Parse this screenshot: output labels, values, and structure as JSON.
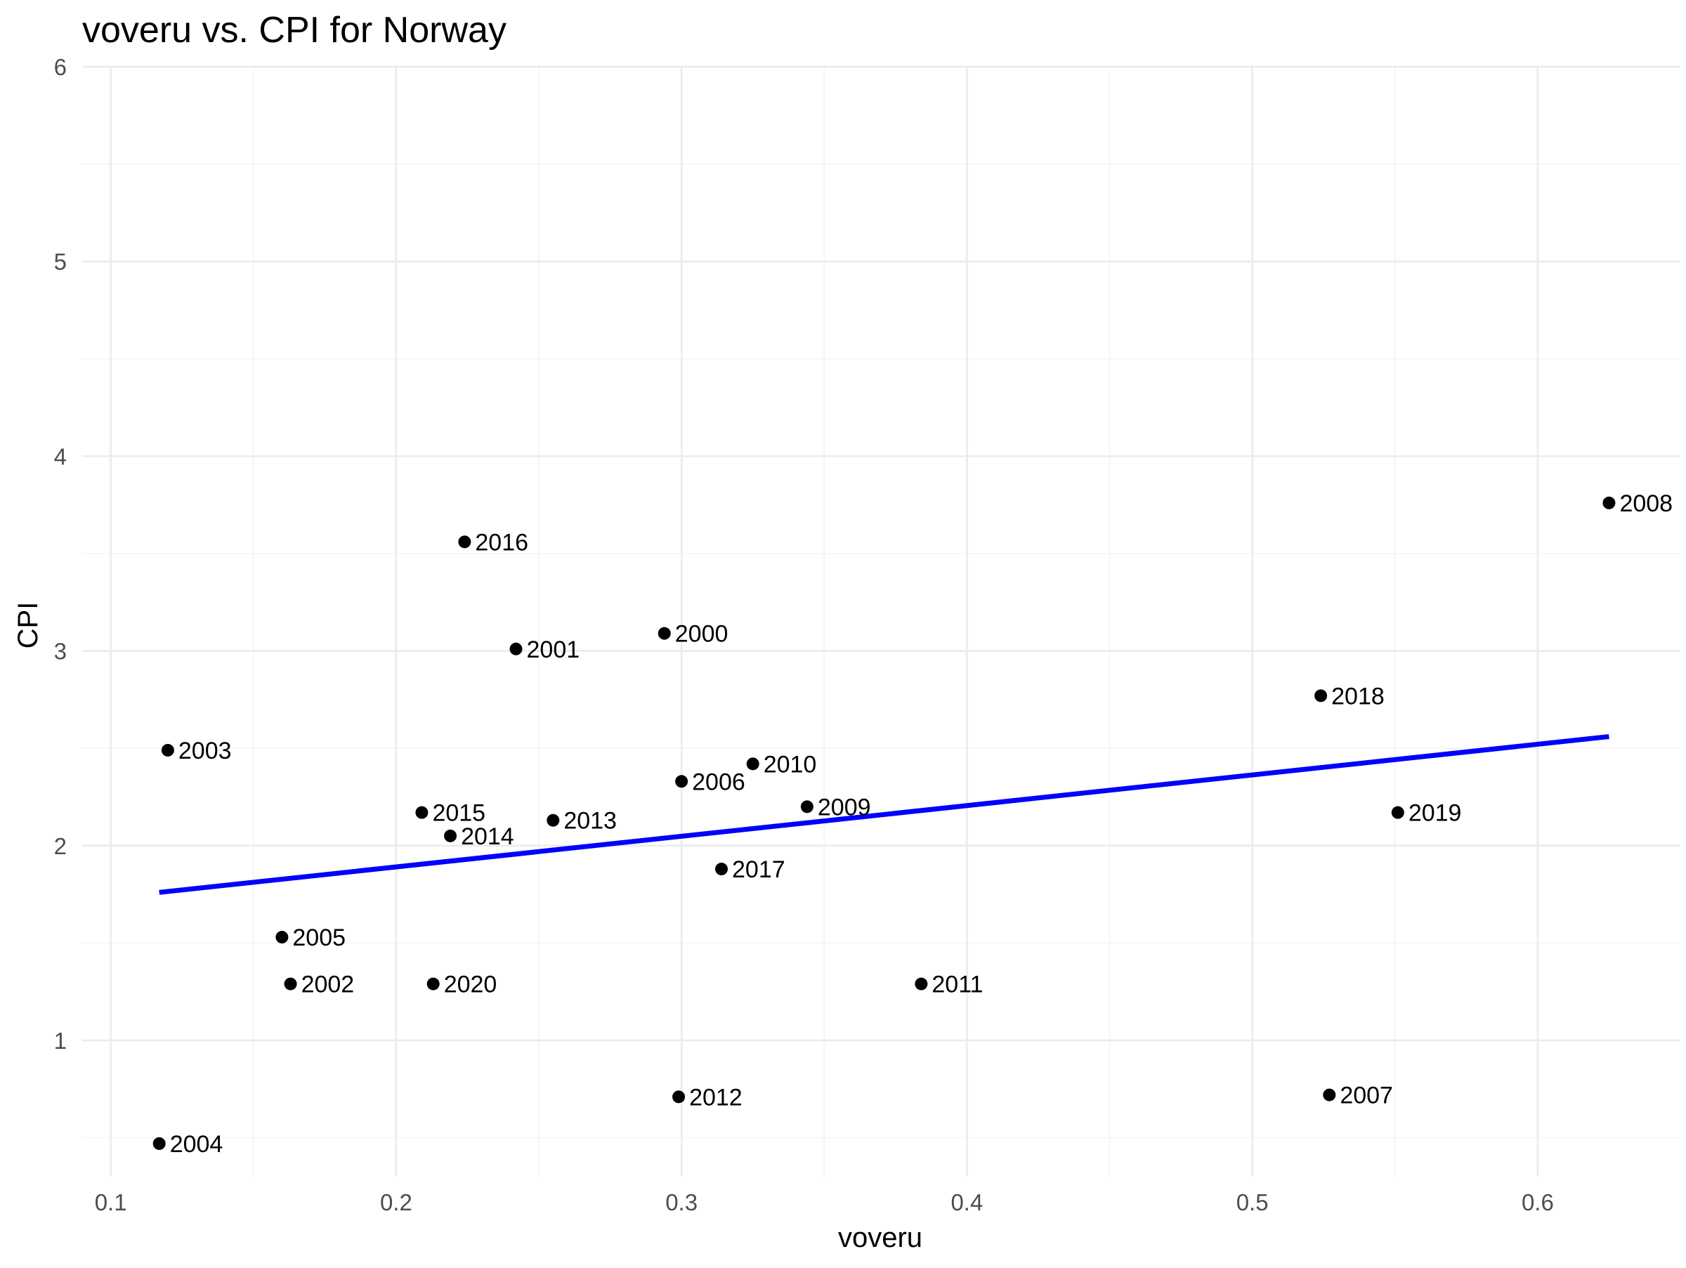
{
  "chart_data": {
    "type": "scatter",
    "title": "voveru vs. CPI for Norway",
    "xlabel": "voveru",
    "ylabel": "CPI",
    "xlim": [
      0.09,
      0.65
    ],
    "ylim": [
      0.3,
      6.0
    ],
    "x_ticks": [
      0.1,
      0.2,
      0.3,
      0.4,
      0.5,
      0.6
    ],
    "x_tick_labels": [
      "0.1",
      "0.2",
      "0.3",
      "0.4",
      "0.5",
      "0.6"
    ],
    "y_ticks": [
      1,
      2,
      3,
      4,
      5,
      6
    ],
    "y_tick_labels": [
      "1",
      "2",
      "3",
      "4",
      "5",
      "6"
    ],
    "grid": true,
    "points": [
      {
        "label": "2000",
        "x": 0.294,
        "y": 3.09
      },
      {
        "label": "2001",
        "x": 0.242,
        "y": 3.01
      },
      {
        "label": "2002",
        "x": 0.163,
        "y": 1.29
      },
      {
        "label": "2003",
        "x": 0.12,
        "y": 2.49
      },
      {
        "label": "2004",
        "x": 0.117,
        "y": 0.47
      },
      {
        "label": "2005",
        "x": 0.16,
        "y": 1.53
      },
      {
        "label": "2006",
        "x": 0.3,
        "y": 2.33
      },
      {
        "label": "2007",
        "x": 0.527,
        "y": 0.72
      },
      {
        "label": "2008",
        "x": 0.625,
        "y": 3.76
      },
      {
        "label": "2009",
        "x": 0.344,
        "y": 2.2
      },
      {
        "label": "2010",
        "x": 0.325,
        "y": 2.42
      },
      {
        "label": "2011",
        "x": 0.384,
        "y": 1.29
      },
      {
        "label": "2012",
        "x": 0.299,
        "y": 0.71
      },
      {
        "label": "2013",
        "x": 0.255,
        "y": 2.13
      },
      {
        "label": "2014",
        "x": 0.219,
        "y": 2.05
      },
      {
        "label": "2015",
        "x": 0.209,
        "y": 2.17
      },
      {
        "label": "2016",
        "x": 0.224,
        "y": 3.56
      },
      {
        "label": "2017",
        "x": 0.314,
        "y": 1.88
      },
      {
        "label": "2018",
        "x": 0.524,
        "y": 2.77
      },
      {
        "label": "2019",
        "x": 0.551,
        "y": 2.17
      },
      {
        "label": "2020",
        "x": 0.213,
        "y": 1.29
      }
    ],
    "trend_line": {
      "color": "#0000ff",
      "x": [
        0.117,
        0.625
      ],
      "y": [
        1.76,
        2.56
      ]
    },
    "point_color": "#000000"
  }
}
